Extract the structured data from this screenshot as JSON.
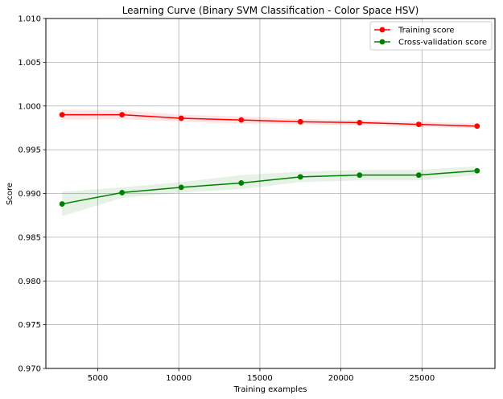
{
  "chart_data": {
    "type": "line",
    "title": "Learning Curve (Binary SVM Classification - Color Space HSV)",
    "xlabel": "Training examples",
    "ylabel": "Score",
    "xlim": [
      1800,
      29500
    ],
    "ylim": [
      0.97,
      1.01
    ],
    "xticks": [
      5000,
      10000,
      15000,
      20000,
      25000
    ],
    "yticks": [
      0.97,
      0.975,
      0.98,
      0.985,
      0.99,
      0.995,
      1.0,
      1.005,
      1.01
    ],
    "ytick_labels": [
      "0.970",
      "0.975",
      "0.980",
      "0.985",
      "0.990",
      "0.995",
      "1.000",
      "1.005",
      "1.010"
    ],
    "grid": true,
    "legend_position": "top-right",
    "x": [
      2800,
      6500,
      10150,
      13850,
      17500,
      21150,
      24800,
      28400
    ],
    "series": [
      {
        "name": "Training score",
        "color": "#ff0000",
        "values": [
          0.999,
          0.999,
          0.9986,
          0.9984,
          0.9982,
          0.9981,
          0.9979,
          0.9977
        ],
        "band_lower": [
          0.9984,
          0.9985,
          0.9982,
          0.998,
          0.9979,
          0.9978,
          0.9976,
          0.9975
        ],
        "band_upper": [
          0.9996,
          0.9995,
          0.999,
          0.9988,
          0.9985,
          0.9984,
          0.9982,
          0.998
        ]
      },
      {
        "name": "Cross-validation score",
        "color": "#008000",
        "values": [
          0.9888,
          0.9901,
          0.9907,
          0.9912,
          0.9919,
          0.9921,
          0.9921,
          0.9926
        ],
        "band_lower": [
          0.9874,
          0.9895,
          0.9901,
          0.9905,
          0.9913,
          0.9915,
          0.9915,
          0.9921
        ],
        "band_upper": [
          0.9902,
          0.9907,
          0.9913,
          0.9921,
          0.9925,
          0.9927,
          0.9927,
          0.9931
        ]
      }
    ]
  }
}
